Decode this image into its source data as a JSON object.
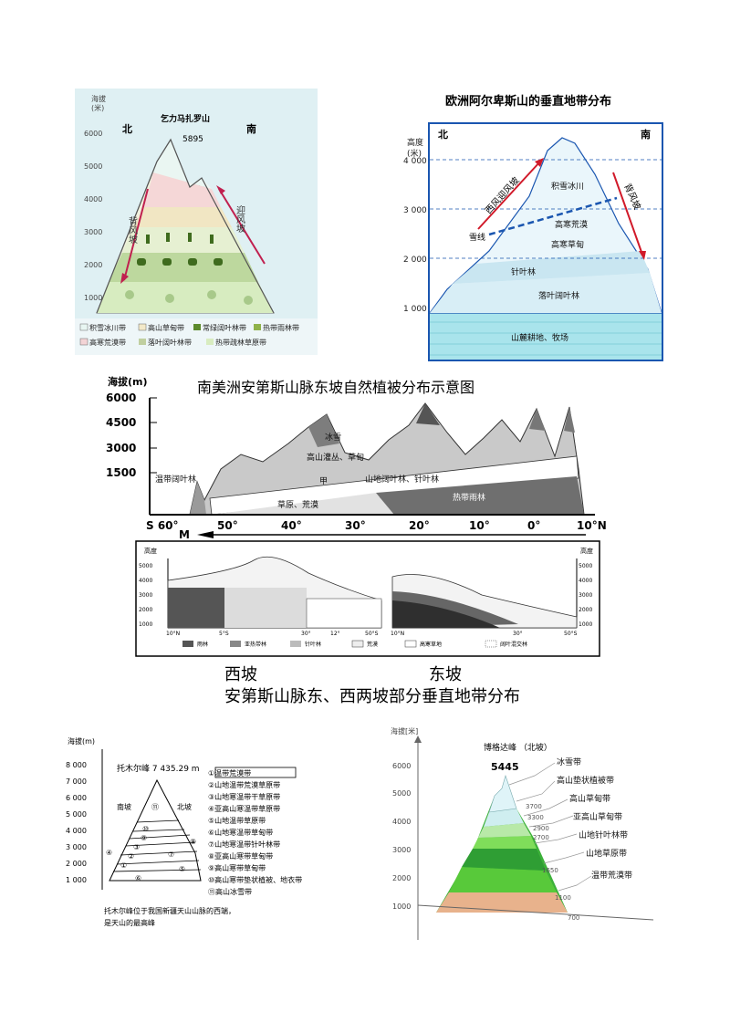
{
  "kilimanjaro": {
    "y_axis_title": "海拔",
    "y_axis_unit": "(米)",
    "peak_name": "乞力马扎罗山",
    "peak_height": "5895",
    "north": "北",
    "south": "南",
    "ticks": [
      "6000",
      "5000",
      "4000",
      "3000",
      "2000",
      "1000"
    ],
    "leeward_label": "背风坡",
    "windward_label": "迎风坡",
    "legend": [
      "积雪冰川带",
      "高山草甸带",
      "常绿阔叶林带",
      "热带雨林带",
      "高寒荒漠带",
      "落叶阔叶林带",
      "热带疏林草原带"
    ],
    "legend_colors": [
      "#e8f6f2",
      "#f3e9c9",
      "#5c8a2c",
      "#8fb24a",
      "#f3d4d6",
      "#c0cfa0",
      "#d8ecc0"
    ]
  },
  "alps": {
    "title": "欧洲阿尔卑斯山的垂直地带分布",
    "y_axis_title": "高度",
    "y_axis_unit": "(米)",
    "north": "北",
    "south": "南",
    "ticks": [
      "4 000",
      "3 000",
      "2 000",
      "1 000"
    ],
    "left_wind": "西风迎风坡",
    "right_wind": "背风坡",
    "snowline": "雪线",
    "zones": [
      "积雪冰川",
      "高寒荒漠",
      "高寒草甸",
      "针叶林",
      "落叶阔叶林",
      "山麓耕地、牧场"
    ]
  },
  "andes": {
    "title": "南美洲安第斯山脉东坡自然植被分布示意图",
    "y_axis_title": "海拔(m)",
    "y_ticks": [
      "6000",
      "4500",
      "3000",
      "1500"
    ],
    "x_ticks": [
      "S 60°",
      "50°",
      "40°",
      "30°",
      "20°",
      "10°",
      "0°",
      "10°N"
    ],
    "arrow_label": "M",
    "zones": [
      "冰雪",
      "高山灌丛、草甸",
      "山地阔叶林、针叶林",
      "甲",
      "温带阔叶林",
      "草原、荒漠",
      "热带雨林"
    ]
  },
  "andes_slopes": {
    "axis_title": "高度",
    "y_ticks": [
      "5000",
      "4000",
      "3000",
      "2000",
      "1000"
    ],
    "west_x_ticks": [
      "10°N",
      "5°S",
      "30°",
      "12°",
      "50°S"
    ],
    "east_x_ticks": [
      "10°N",
      "30°",
      "50°S"
    ],
    "legend": [
      "雨林",
      "亚热带林",
      "针叶林",
      "荒漠",
      "高寒草地",
      "阔叶混交林"
    ],
    "west_label": "西坡",
    "east_label": "东坡",
    "caption": "安第斯山脉东、西两坡部分垂直地带分布"
  },
  "tomur": {
    "y_axis_title": "海拔(m)",
    "y_ticks": [
      "8 000",
      "7 000",
      "6 000",
      "5 000",
      "4 000",
      "3 000",
      "2 000",
      "1 000"
    ],
    "peak": "托木尔峰 7 435.29 m",
    "south_slope": "南坡",
    "north_slope": "北坡",
    "legend": [
      "①温带荒漠带",
      "②山地温带荒漠草原带",
      "③山地寒温带干草原带",
      "④亚高山寒温带草原带",
      "⑤山地温带草原带",
      "⑥山地寒温带草甸带",
      "⑦山地寒温带针叶林带",
      "⑧亚高山寒带草甸带",
      "⑨高山寒带草甸带",
      "⑩高山寒带垫状植被、地衣带",
      "⑪高山冰雪带"
    ],
    "zone_numbers": [
      "⑪",
      "⑩",
      "⑨",
      "⑧",
      "④",
      "③",
      "⑦",
      "②",
      "①",
      "⑤",
      "⑥"
    ],
    "note": [
      "托木尔峰位于我国新疆天山山脉的西端，",
      "是天山的最高峰"
    ]
  },
  "bogda": {
    "y_axis_title": "海拔[米]",
    "title": "博格达峰 （北坡）",
    "peak_height": "5445",
    "y_ticks": [
      "6000",
      "5000",
      "4000",
      "3000",
      "2000",
      "1000"
    ],
    "boundary_heights": [
      "3700",
      "3300",
      "2900",
      "2700",
      "1650",
      "1100",
      "700"
    ],
    "zones": [
      "冰雪带",
      "高山垫状植被带",
      "高山草甸带",
      "亚高山草甸带",
      "山地针叶林带",
      "山地草原带",
      "温带荒漠带"
    ]
  }
}
